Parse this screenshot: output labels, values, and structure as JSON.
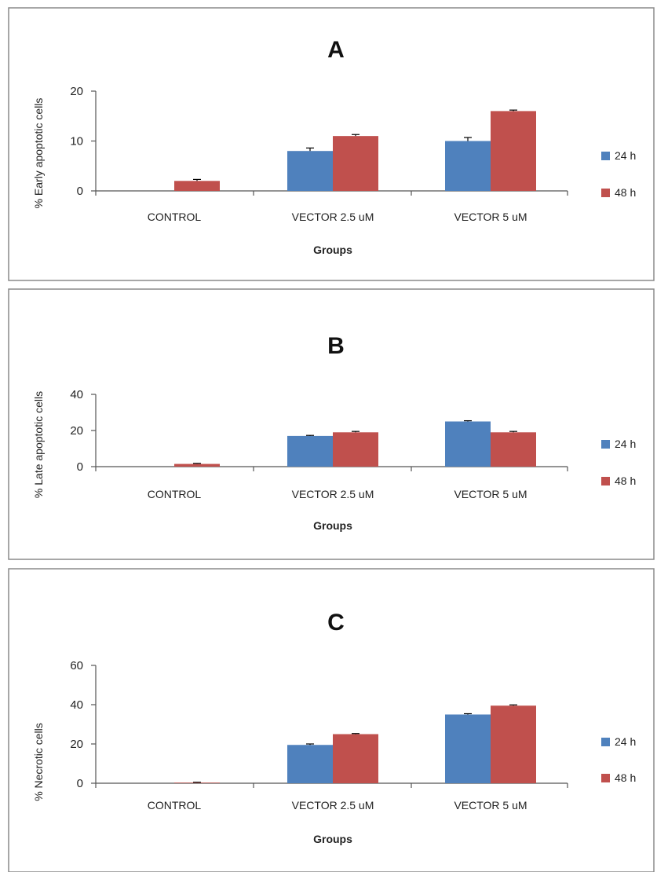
{
  "chart_data": [
    {
      "type": "bar",
      "title": "A",
      "xlabel": "Groups",
      "ylabel": "% Early apoptotic cells",
      "categories": [
        "CONTROL",
        "VECTOR 2.5 uM",
        "VECTOR 5 uM"
      ],
      "ylim": [
        0,
        20
      ],
      "yticks": [
        0,
        10,
        20
      ],
      "legend_position": "right",
      "series": [
        {
          "name": "24 h",
          "color": "#4F81BD",
          "values": [
            0,
            8,
            10
          ],
          "errors": [
            0,
            0.6,
            0.7
          ]
        },
        {
          "name": "48 h",
          "color": "#C0504D",
          "values": [
            2,
            11,
            16
          ],
          "errors": [
            0.3,
            0.3,
            0.2
          ]
        }
      ]
    },
    {
      "type": "bar",
      "title": "B",
      "xlabel": "Groups",
      "ylabel": "% Late apoptotic cells",
      "categories": [
        "CONTROL",
        "VECTOR 2.5 uM",
        "VECTOR 5 uM"
      ],
      "ylim": [
        0,
        40
      ],
      "yticks": [
        0,
        20,
        40
      ],
      "legend_position": "right",
      "series": [
        {
          "name": "24 h",
          "color": "#4F81BD",
          "values": [
            0,
            17,
            25
          ],
          "errors": [
            0,
            0.3,
            0.4
          ]
        },
        {
          "name": "48 h",
          "color": "#C0504D",
          "values": [
            1.5,
            19,
            19
          ],
          "errors": [
            0.3,
            0.5,
            0.5
          ]
        }
      ]
    },
    {
      "type": "bar",
      "title": "C",
      "xlabel": "Groups",
      "ylabel": "% Necrotic cells",
      "categories": [
        "CONTROL",
        "VECTOR 2.5 uM",
        "VECTOR 5 uM"
      ],
      "ylim": [
        0,
        60
      ],
      "yticks": [
        0,
        20,
        40,
        60
      ],
      "legend_position": "right",
      "series": [
        {
          "name": "24 h",
          "color": "#4F81BD",
          "values": [
            0,
            19.5,
            35
          ],
          "errors": [
            0,
            0.5,
            0.4
          ]
        },
        {
          "name": "48 h",
          "color": "#C0504D",
          "values": [
            0.3,
            25,
            39.5
          ],
          "errors": [
            0.2,
            0.3,
            0.4
          ]
        }
      ]
    }
  ]
}
